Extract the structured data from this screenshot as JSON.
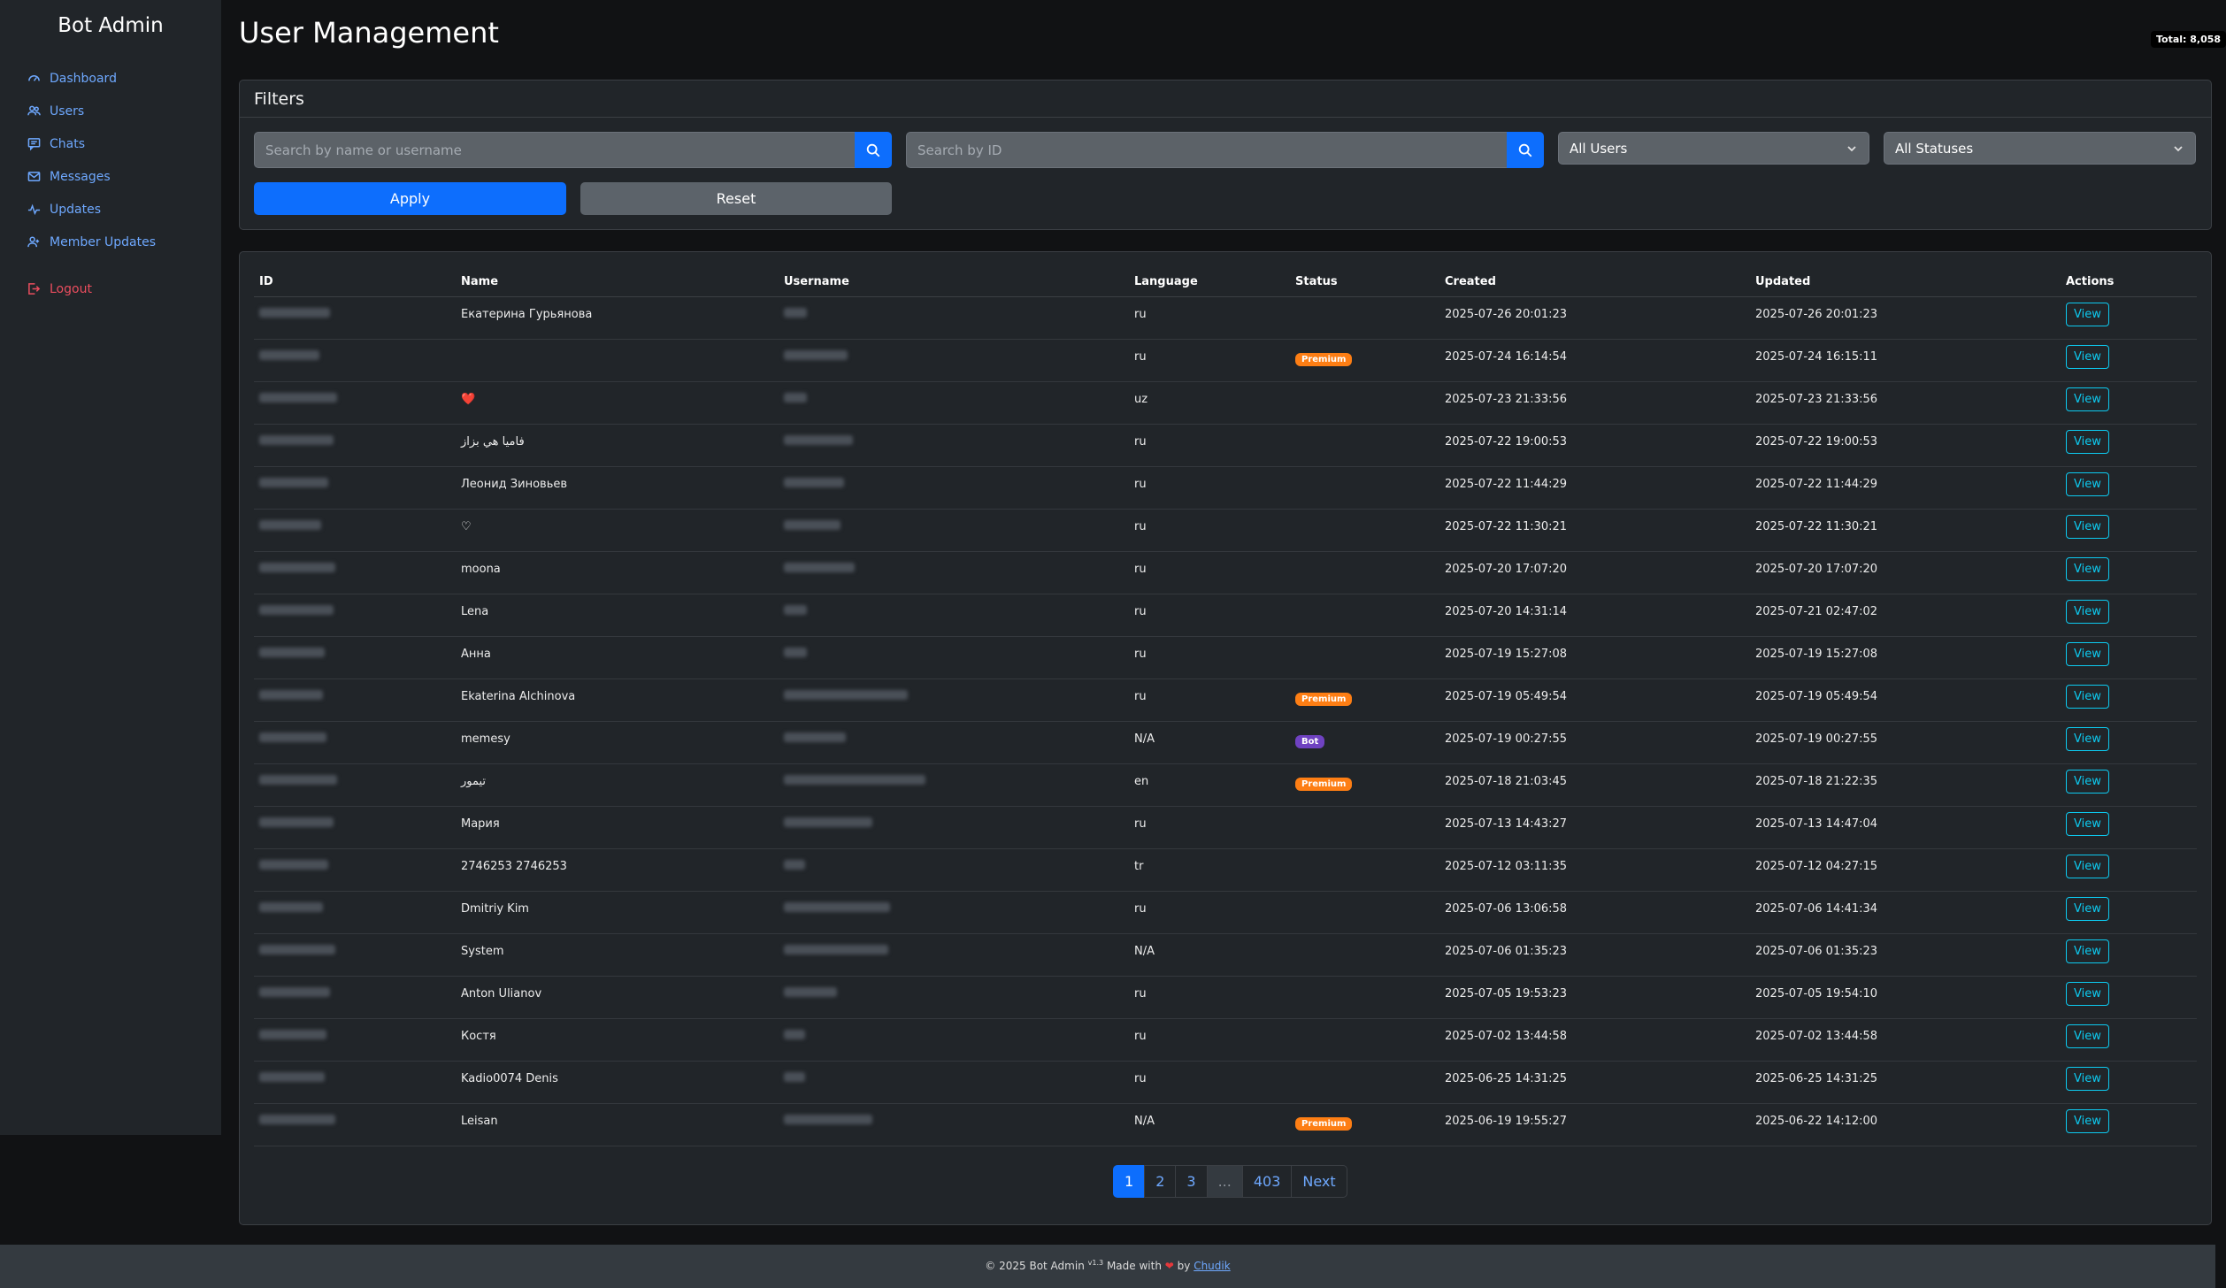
{
  "brand": "Bot Admin",
  "nav": [
    {
      "label": "Dashboard",
      "icon": "gauge-icon"
    },
    {
      "label": "Users",
      "icon": "users-icon"
    },
    {
      "label": "Chats",
      "icon": "chat-icon"
    },
    {
      "label": "Messages",
      "icon": "envelope-icon"
    },
    {
      "label": "Updates",
      "icon": "activity-icon"
    },
    {
      "label": "Member Updates",
      "icon": "member-icon"
    }
  ],
  "logout_label": "Logout",
  "page_title": "User Management",
  "total_badge": "Total: 8,058",
  "filters": {
    "title": "Filters",
    "search_name_placeholder": "Search by name or username",
    "search_id_placeholder": "Search by ID",
    "user_type_selected": "All Users",
    "status_selected": "All Statuses",
    "apply_label": "Apply",
    "reset_label": "Reset"
  },
  "table": {
    "columns": [
      "ID",
      "Name",
      "Username",
      "Language",
      "Status",
      "Created",
      "Updated",
      "Actions"
    ],
    "view_label": "View",
    "rows": [
      {
        "name": "Екатерина Гурьянова",
        "language": "ru",
        "status": "",
        "created": "2025-07-26 20:01:23",
        "updated": "2025-07-26 20:01:23"
      },
      {
        "name": "",
        "language": "ru",
        "status": "Premium",
        "created": "2025-07-24 16:14:54",
        "updated": "2025-07-24 16:15:11"
      },
      {
        "name": "❤️",
        "language": "uz",
        "status": "",
        "created": "2025-07-23 21:33:56",
        "updated": "2025-07-23 21:33:56"
      },
      {
        "name": "فاميا هي بزاز",
        "language": "ru",
        "status": "",
        "created": "2025-07-22 19:00:53",
        "updated": "2025-07-22 19:00:53"
      },
      {
        "name": "Леонид Зиновьев",
        "language": "ru",
        "status": "",
        "created": "2025-07-22 11:44:29",
        "updated": "2025-07-22 11:44:29"
      },
      {
        "name": "♡",
        "language": "ru",
        "status": "",
        "created": "2025-07-22 11:30:21",
        "updated": "2025-07-22 11:30:21"
      },
      {
        "name": "moona",
        "language": "ru",
        "status": "",
        "created": "2025-07-20 17:07:20",
        "updated": "2025-07-20 17:07:20"
      },
      {
        "name": "Lena",
        "language": "ru",
        "status": "",
        "created": "2025-07-20 14:31:14",
        "updated": "2025-07-21 02:47:02"
      },
      {
        "name": "Анна",
        "language": "ru",
        "status": "",
        "created": "2025-07-19 15:27:08",
        "updated": "2025-07-19 15:27:08"
      },
      {
        "name": "Ekaterina Alchinova",
        "language": "ru",
        "status": "Premium",
        "created": "2025-07-19 05:49:54",
        "updated": "2025-07-19 05:49:54"
      },
      {
        "name": "memesy",
        "language": "N/A",
        "status": "Bot",
        "created": "2025-07-19 00:27:55",
        "updated": "2025-07-19 00:27:55"
      },
      {
        "name": "تيمور",
        "language": "en",
        "status": "Premium",
        "created": "2025-07-18 21:03:45",
        "updated": "2025-07-18 21:22:35"
      },
      {
        "name": "Мария",
        "language": "ru",
        "status": "",
        "created": "2025-07-13 14:43:27",
        "updated": "2025-07-13 14:47:04"
      },
      {
        "name": "2746253 2746253",
        "language": "tr",
        "status": "",
        "created": "2025-07-12 03:11:35",
        "updated": "2025-07-12 04:27:15"
      },
      {
        "name": "Dmitriy Kim",
        "language": "ru",
        "status": "",
        "created": "2025-07-06 13:06:58",
        "updated": "2025-07-06 14:41:34"
      },
      {
        "name": "System",
        "language": "N/A",
        "status": "",
        "created": "2025-07-06 01:35:23",
        "updated": "2025-07-06 01:35:23"
      },
      {
        "name": "Anton Ulianov",
        "language": "ru",
        "status": "",
        "created": "2025-07-05 19:53:23",
        "updated": "2025-07-05 19:54:10"
      },
      {
        "name": "Костя",
        "language": "ru",
        "status": "",
        "created": "2025-07-02 13:44:58",
        "updated": "2025-07-02 13:44:58"
      },
      {
        "name": "Kadio0074 Denis",
        "language": "ru",
        "status": "",
        "created": "2025-06-25 14:31:25",
        "updated": "2025-06-25 14:31:25"
      },
      {
        "name": "Leisan",
        "language": "N/A",
        "status": "Premium",
        "created": "2025-06-19 19:55:27",
        "updated": "2025-06-22 14:12:00"
      }
    ]
  },
  "pagination": {
    "pages": [
      "1",
      "2",
      "3",
      "...",
      "403"
    ],
    "next_label": "Next",
    "current": "1"
  },
  "footer": {
    "prefix": "© 2025 Bot Admin",
    "version": "v1.3",
    "made_with": "Made with",
    "by": "by",
    "author": "Chudik"
  },
  "colors": {
    "accent": "#0d6efd",
    "premium": "#fd7e14",
    "bot": "#6f42c1",
    "danger": "#ea4d5e"
  }
}
